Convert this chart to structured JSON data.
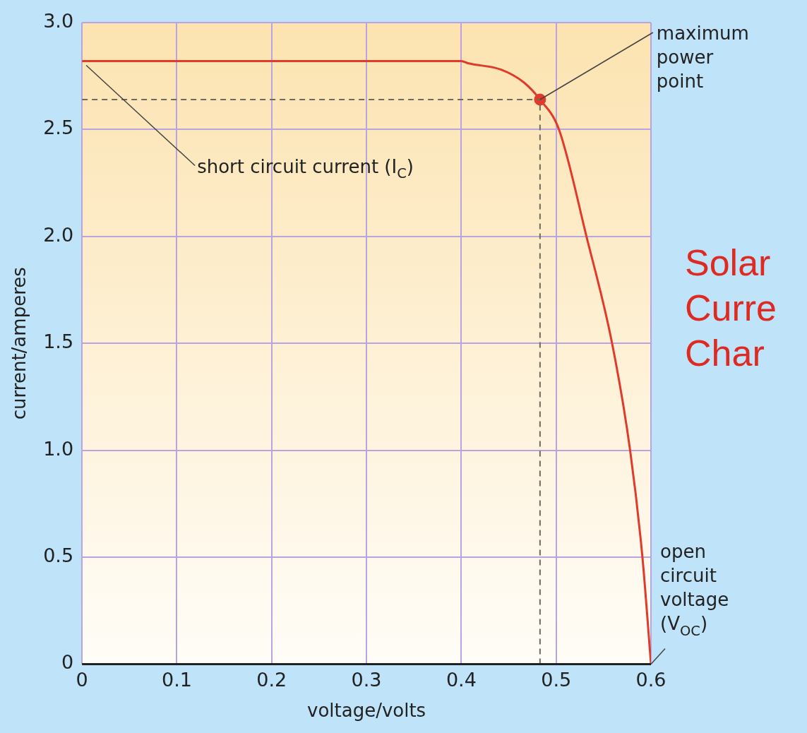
{
  "chart_data": {
    "type": "line",
    "title": "Solar Curre Char",
    "xlabel": "voltage/volts",
    "ylabel": "current/amperes",
    "xlim": [
      0,
      0.6
    ],
    "xticks": [
      0,
      0.1,
      0.2,
      0.3,
      0.4,
      0.5,
      0.6
    ],
    "ylim": [
      0,
      3
    ],
    "yticks": [
      0,
      0.5,
      {
        "value": 1,
        "label": "1.0"
      },
      1.5,
      {
        "value": 2,
        "label": "2.0"
      },
      2.5,
      {
        "value": 3,
        "label": "3.0"
      }
    ],
    "grid": true,
    "legend": false,
    "series": [
      {
        "color": "#e03a2a",
        "marker": "none",
        "x": [
          0,
          0.4,
          0.407,
          0.442,
          0.466,
          0.483,
          0.503,
          0.532,
          0.559,
          0.578,
          0.591,
          0.6
        ],
        "values": [
          2.82,
          2.82,
          2.81,
          2.78,
          2.72,
          2.64,
          2.5,
          2.0,
          1.5,
          1.0,
          0.5,
          0
        ]
      },
      {
        "type": "scatter",
        "color": "#e03a2a",
        "marker": "circle",
        "x": [
          0.483
        ],
        "values": [
          2.64
        ]
      }
    ],
    "ref_lines": [
      {
        "axis": "y",
        "value": 2.64,
        "line_style": "dashed",
        "color": "#6e6a5e"
      },
      {
        "axis": "x",
        "value": 0.483,
        "line_style": "dashed",
        "color": "#6e6a5e"
      }
    ],
    "annotations": [
      {
        "text": "maximum power point",
        "x": 0.483,
        "y": 2.64
      },
      {
        "text": "short circuit current (I$_{C}$)",
        "x": 0,
        "y": 2.82
      },
      {
        "text": "open circuit voltage (V$_{OC}$)",
        "x": 0.6,
        "y": 0
      }
    ]
  }
}
